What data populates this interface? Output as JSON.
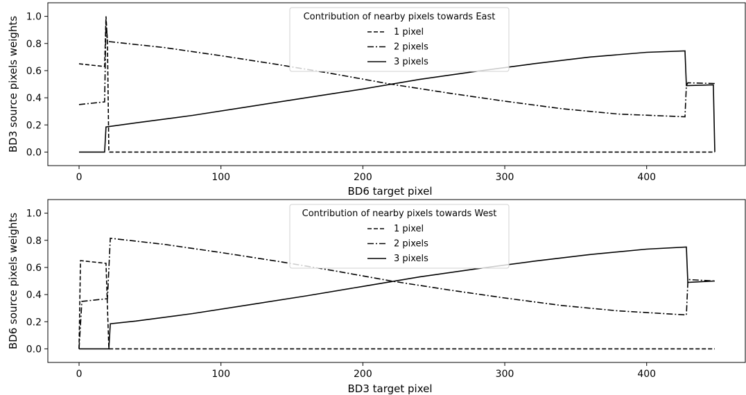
{
  "chart_data": [
    {
      "type": "line",
      "xlabel": "BD6 target pixel",
      "ylabel": "BD3 source pixels weights",
      "xlim": [
        -22,
        470
      ],
      "ylim": [
        -0.1,
        1.1
      ],
      "xticks": [
        0,
        100,
        200,
        300,
        400
      ],
      "yticks": [
        0.0,
        0.2,
        0.4,
        0.6,
        0.8,
        1.0
      ],
      "grid": false,
      "legend": {
        "title": "Contribution of nearby pixels towards East",
        "placement": "top-center"
      },
      "series": [
        {
          "name": "1 pixel",
          "style": "dashed",
          "x": [
            0,
            18,
            19,
            20,
            21,
            448
          ],
          "y": [
            0.65,
            0.63,
            1.0,
            0.8,
            0.0,
            0.0
          ]
        },
        {
          "name": "2 pixels",
          "style": "dashdot",
          "x": [
            0,
            18,
            19,
            20,
            60,
            100,
            140,
            180,
            220,
            260,
            300,
            340,
            380,
            427,
            428,
            429,
            448
          ],
          "y": [
            0.35,
            0.37,
            0.97,
            0.815,
            0.77,
            0.71,
            0.645,
            0.575,
            0.5,
            0.435,
            0.375,
            0.32,
            0.28,
            0.26,
            0.49,
            0.51,
            0.505
          ]
        },
        {
          "name": "3 pixels",
          "style": "solid",
          "x": [
            0,
            18,
            19,
            40,
            80,
            120,
            160,
            200,
            240,
            280,
            320,
            360,
            400,
            427,
            428,
            447,
            448
          ],
          "y": [
            0.0,
            0.0,
            0.185,
            0.215,
            0.27,
            0.335,
            0.4,
            0.465,
            0.535,
            0.595,
            0.65,
            0.7,
            0.735,
            0.745,
            0.49,
            0.495,
            0.0
          ]
        }
      ]
    },
    {
      "type": "line",
      "xlabel": "BD3 target pixel",
      "ylabel": "BD6 source pixels weights",
      "xlim": [
        -22,
        470
      ],
      "ylim": [
        -0.1,
        1.1
      ],
      "xticks": [
        0,
        100,
        200,
        300,
        400
      ],
      "yticks": [
        0.0,
        0.2,
        0.4,
        0.6,
        0.8,
        1.0
      ],
      "grid": false,
      "legend": {
        "title": "Contribution of nearby pixels towards West",
        "placement": "top-center"
      },
      "series": [
        {
          "name": "1 pixel",
          "style": "dashed",
          "x": [
            0,
            1,
            19,
            21,
            448
          ],
          "y": [
            0.0,
            0.65,
            0.63,
            0.0,
            0.0
          ]
        },
        {
          "name": "2 pixels",
          "style": "dashdot",
          "x": [
            0,
            2,
            20,
            22,
            60,
            100,
            140,
            180,
            220,
            260,
            300,
            340,
            380,
            428,
            429,
            430,
            448
          ],
          "y": [
            0.0,
            0.35,
            0.37,
            0.815,
            0.77,
            0.71,
            0.645,
            0.575,
            0.5,
            0.435,
            0.375,
            0.32,
            0.28,
            0.25,
            0.49,
            0.51,
            0.5
          ]
        },
        {
          "name": "3 pixels",
          "style": "solid",
          "x": [
            0,
            21,
            22,
            40,
            80,
            120,
            160,
            200,
            240,
            280,
            320,
            360,
            400,
            428,
            429,
            448
          ],
          "y": [
            0.0,
            0.0,
            0.185,
            0.205,
            0.26,
            0.325,
            0.39,
            0.46,
            0.53,
            0.59,
            0.645,
            0.695,
            0.735,
            0.75,
            0.49,
            0.5
          ]
        }
      ]
    }
  ]
}
